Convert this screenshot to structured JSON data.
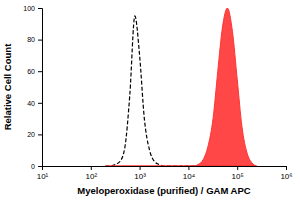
{
  "chart_data": {
    "type": "line",
    "x_label": "Myeloperoxidase (purified) / GAM APC",
    "y_label": "Relative Cell Count",
    "log": "x",
    "xlim": [
      10,
      1000000
    ],
    "xticks": [
      {
        "value": 10,
        "label": "10¹"
      },
      {
        "value": 100,
        "label": "10²"
      },
      {
        "value": 1000,
        "label": "10³"
      },
      {
        "value": 10000,
        "label": "10⁴"
      },
      {
        "value": 100000,
        "label": "10⁵"
      },
      {
        "value": 1000000,
        "label": "10⁶"
      }
    ],
    "ylim": [
      0,
      100
    ],
    "yticks": [
      0,
      20,
      40,
      60,
      80,
      100
    ],
    "grid": false,
    "x": [
      200,
      250,
      320,
      400,
      500,
      630,
      800,
      1000,
      1250,
      1600,
      2000,
      2500,
      3200,
      4000,
      5000,
      6300,
      8000,
      10000,
      12500,
      16000,
      20000,
      25000,
      32000,
      40000,
      50000,
      63000,
      80000,
      100000,
      125000,
      160000,
      200000,
      250000
    ],
    "series": [
      {
        "type": "line",
        "line_style": "dashed",
        "color": "#000000",
        "values": [
          0,
          0,
          1,
          3,
          12,
          45,
          95,
          70,
          30,
          10,
          3,
          1,
          0,
          0,
          0,
          0,
          0,
          0,
          0,
          0,
          0,
          0,
          0,
          0,
          0,
          0,
          0,
          0,
          0,
          0,
          0,
          0
        ]
      },
      {
        "type": "area",
        "color": "#ff3333",
        "values": [
          0,
          0,
          0,
          0,
          0,
          0,
          0,
          0,
          0,
          0,
          0,
          0,
          0,
          0,
          0,
          0,
          0,
          0,
          0,
          1,
          4,
          12,
          30,
          60,
          88,
          100,
          85,
          55,
          25,
          8,
          2,
          0
        ]
      }
    ]
  }
}
